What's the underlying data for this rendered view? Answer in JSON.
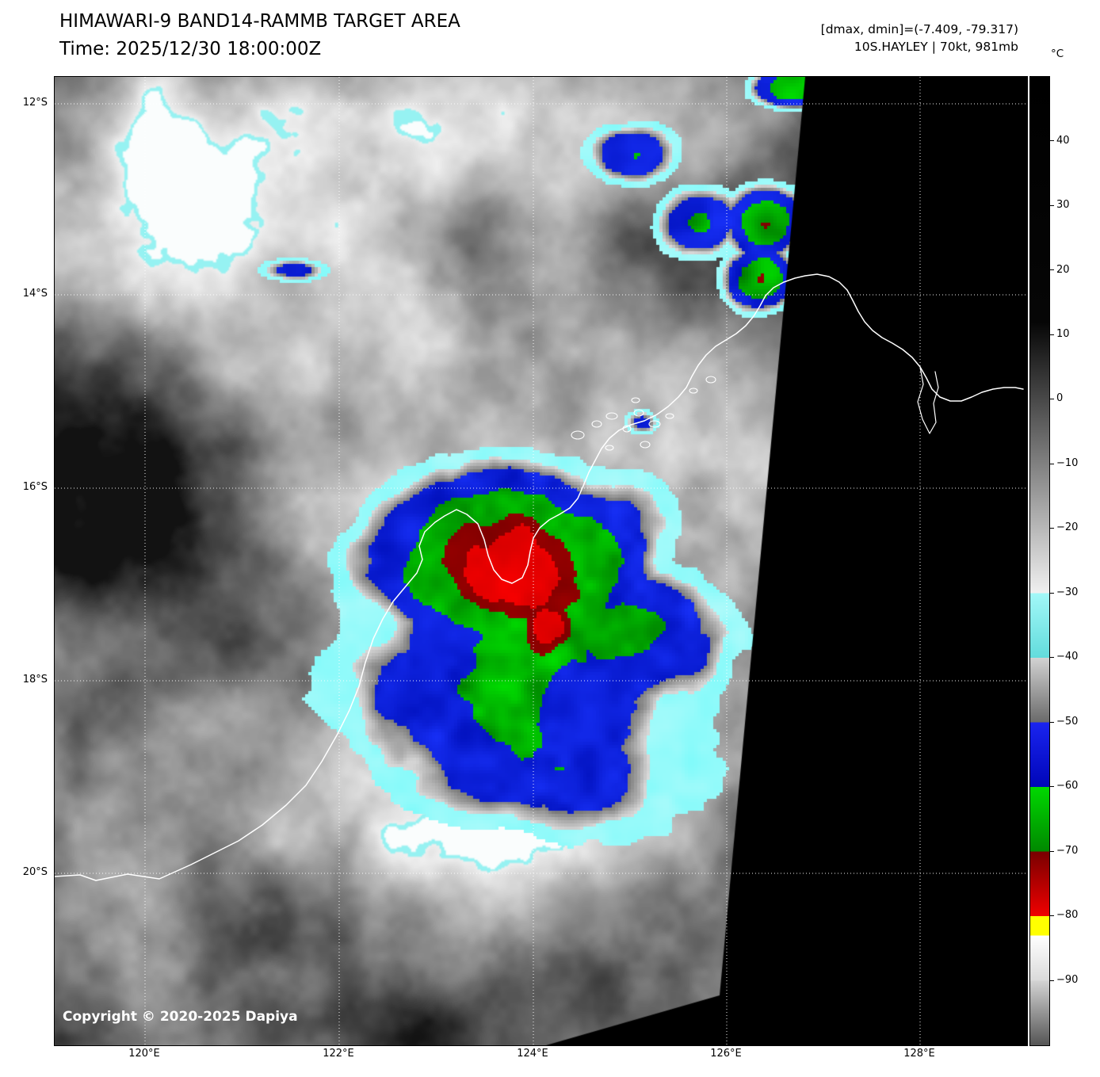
{
  "header": {
    "title": "HIMAWARI-9 BAND14-RAMMB TARGET AREA",
    "time": "Time: 2025/12/30 18:00:00Z",
    "dmax_dmin": "[dmax, dmin]=(-7.409, -79.317)",
    "storm": "10S.HAYLEY | 70kt, 981mb"
  },
  "axes": {
    "lat": [
      "12°S",
      "14°S",
      "16°S",
      "18°S",
      "20°S"
    ],
    "lon": [
      "120°E",
      "122°E",
      "124°E",
      "126°E",
      "128°E"
    ]
  },
  "map": {
    "copyright": "Copyright © 2020-2025 Dapiya"
  },
  "colorbar": {
    "unit": "°C",
    "ticks": [
      "40",
      "30",
      "20",
      "10",
      "0",
      "−10",
      "−20",
      "−30",
      "−40",
      "−50",
      "−60",
      "−70",
      "−80",
      "−90"
    ],
    "range_top_c": 50,
    "range_bottom_c": -100,
    "stops": [
      {
        "p": 0.0,
        "c": "#000000"
      },
      {
        "p": 0.2533,
        "c": "#060606"
      },
      {
        "p": 0.5333,
        "c": "#f0f0f0"
      },
      {
        "p": 0.5333,
        "c": "#a2f8f8"
      },
      {
        "p": 0.6,
        "c": "#62dcdc"
      },
      {
        "p": 0.6,
        "c": "#d2d2d2"
      },
      {
        "p": 0.6667,
        "c": "#6a6a6a"
      },
      {
        "p": 0.6667,
        "c": "#1a24f0"
      },
      {
        "p": 0.7333,
        "c": "#0006b8"
      },
      {
        "p": 0.7333,
        "c": "#00d800"
      },
      {
        "p": 0.8,
        "c": "#008800"
      },
      {
        "p": 0.8,
        "c": "#780000"
      },
      {
        "p": 0.8667,
        "c": "#f00000"
      },
      {
        "p": 0.8667,
        "c": "#ffff00"
      },
      {
        "p": 0.8867,
        "c": "#ffff00"
      },
      {
        "p": 0.8867,
        "c": "#ffffff"
      },
      {
        "p": 0.9333,
        "c": "#dadada"
      },
      {
        "p": 0.9333,
        "c": "#d4d4d4"
      },
      {
        "p": 1.0,
        "c": "#555555"
      }
    ],
    "palette": {
      "cyan": "#8cfafa",
      "gray_band": "#9a9a9a",
      "blue": "#0a14dc",
      "green": "#00b400",
      "dark_red": "#7d0000",
      "red": "#e10000",
      "yellow": "#ffff00"
    }
  }
}
